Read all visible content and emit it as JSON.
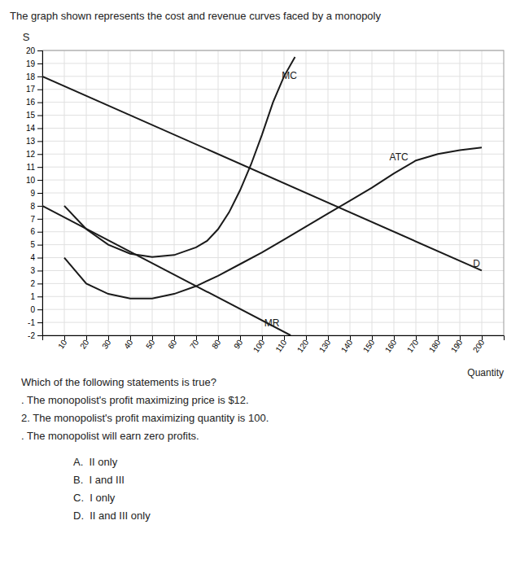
{
  "chart_data": {
    "type": "line",
    "title": "The graph shown represents the cost and revenue curves faced by a monopoly",
    "y_label": "S",
    "x_label": "Quantity",
    "xlim": [
      0,
      210
    ],
    "ylim": [
      -2,
      20
    ],
    "xticks": [
      10,
      20,
      30,
      40,
      50,
      60,
      70,
      80,
      90,
      100,
      110,
      120,
      130,
      140,
      150,
      160,
      170,
      180,
      190,
      200
    ],
    "yticks": [
      -2,
      -1,
      0,
      1,
      2,
      3,
      4,
      5,
      6,
      7,
      8,
      9,
      10,
      11,
      12,
      13,
      14,
      15,
      16,
      17,
      18,
      19,
      20
    ],
    "grid": true,
    "series": [
      {
        "type": "line",
        "color": "#1a1a1a",
        "x": [
          0,
          200
        ],
        "values": [
          18,
          3
        ]
      },
      {
        "type": "line",
        "color": "#1a1a1a",
        "x": [
          0,
          113
        ],
        "values": [
          8,
          -2
        ]
      },
      {
        "type": "line",
        "color": "#1a1a1a",
        "x": [
          10,
          20,
          30,
          40,
          50,
          60,
          70,
          80,
          90,
          100,
          110,
          120,
          130,
          140,
          150,
          160,
          170,
          180,
          190,
          200
        ],
        "values": [
          4.0,
          2.0,
          1.2,
          0.85,
          0.85,
          1.2,
          1.8,
          2.6,
          3.5,
          4.4,
          5.4,
          6.4,
          7.4,
          8.4,
          9.4,
          10.5,
          11.5,
          12.0,
          12.3,
          12.5
        ]
      },
      {
        "type": "line",
        "color": "#1a1a1a",
        "x": [
          10,
          20,
          30,
          40,
          50,
          60,
          70,
          75,
          80,
          85,
          90,
          95,
          100,
          105,
          110,
          115
        ],
        "values": [
          8.0,
          6.2,
          5.0,
          4.3,
          4.05,
          4.2,
          4.8,
          5.3,
          6.2,
          7.5,
          9.2,
          11.2,
          13.5,
          16.0,
          18.0,
          19.5
        ]
      }
    ],
    "annotations": [
      {
        "text": "MC",
        "x": 109,
        "y": 17.8
      },
      {
        "text": "ATC",
        "x": 158,
        "y": 11.5
      },
      {
        "text": "D",
        "x": 196,
        "y": 3.3
      },
      {
        "text": "MR",
        "x": 101,
        "y": -1.3
      }
    ],
    "question": "Which of the following statements is true?",
    "statements": [
      ". The monopolist's profit maximizing price is $12.",
      "2. The monopolist's profit maximizing quantity is 100.",
      ". The monopolist will earn zero profits."
    ],
    "choices": [
      "A.  II only",
      "B.  I and III",
      "C.  I only",
      "D.  II and III only"
    ]
  }
}
